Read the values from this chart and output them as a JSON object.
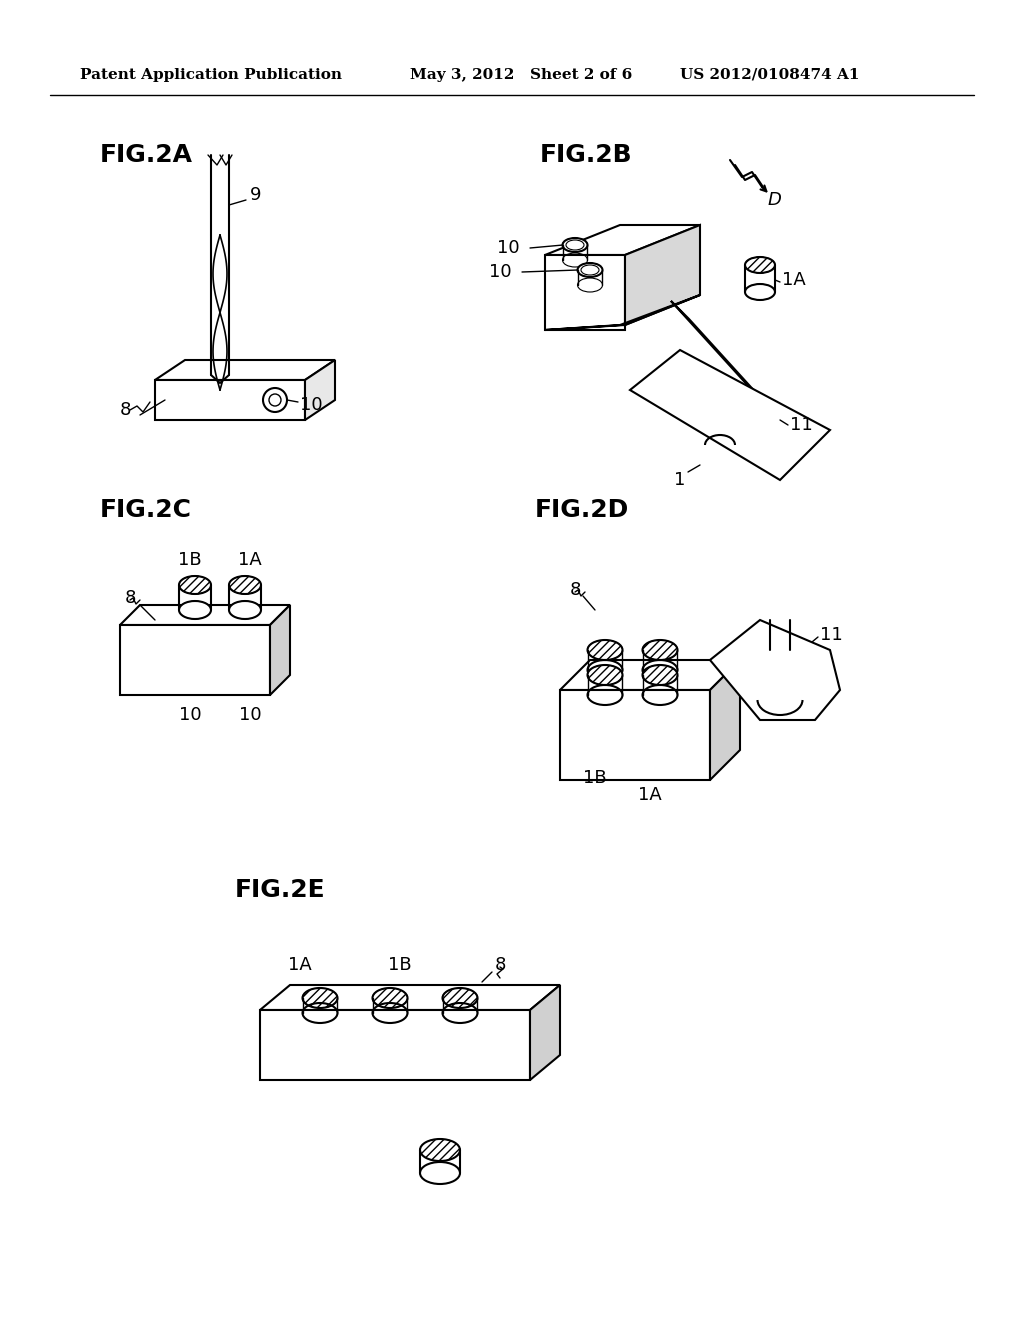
{
  "bg_color": "#ffffff",
  "header_text1": "Patent Application Publication",
  "header_text2": "May 3, 2012",
  "header_text3": "Sheet 2 of 6",
  "header_text4": "US 2012/0108474 A1",
  "fig_labels": [
    "FIG.2A",
    "FIG.2B",
    "FIG.2C",
    "FIG.2D",
    "FIG.2E"
  ],
  "line_color": "#000000",
  "hatch_color": "#000000",
  "line_width": 1.5
}
